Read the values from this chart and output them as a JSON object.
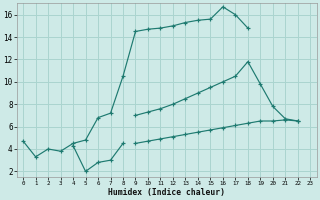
{
  "xlabel": "Humidex (Indice chaleur)",
  "background_color": "#ceeae7",
  "grid_color": "#aad4cf",
  "line_color": "#1e7a70",
  "xlim": [
    -0.5,
    23.5
  ],
  "ylim": [
    1.5,
    17.0
  ],
  "xticks": [
    0,
    1,
    2,
    3,
    4,
    5,
    6,
    7,
    8,
    9,
    10,
    11,
    12,
    13,
    14,
    15,
    16,
    17,
    18,
    19,
    20,
    21,
    22,
    23
  ],
  "yticks": [
    2,
    4,
    6,
    8,
    10,
    12,
    14,
    16
  ],
  "series": [
    {
      "x": [
        0,
        1,
        2,
        3,
        4,
        5,
        6,
        7,
        8,
        9,
        10,
        11,
        12,
        13,
        14,
        15,
        16,
        17,
        18
      ],
      "y": [
        4.7,
        3.3,
        4.0,
        3.8,
        4.5,
        4.8,
        6.8,
        7.2,
        10.5,
        14.5,
        14.7,
        14.8,
        15.0,
        15.3,
        15.5,
        15.6,
        16.7,
        16.0,
        14.8
      ]
    },
    {
      "x": [
        4,
        5,
        6,
        7,
        8
      ],
      "y": [
        4.3,
        2.0,
        2.8,
        3.0,
        4.5
      ]
    },
    {
      "x": [
        9,
        10,
        11,
        12,
        13,
        14,
        15,
        16,
        17,
        18,
        19,
        20,
        21,
        22
      ],
      "y": [
        7.0,
        7.3,
        7.6,
        8.0,
        8.5,
        9.0,
        9.5,
        10.0,
        10.5,
        11.8,
        9.8,
        7.8,
        6.7,
        6.5
      ]
    },
    {
      "x": [
        9,
        10,
        11,
        12,
        13,
        14,
        15,
        16,
        17,
        18,
        19,
        20,
        21,
        22
      ],
      "y": [
        4.5,
        4.7,
        4.9,
        5.1,
        5.3,
        5.5,
        5.7,
        5.9,
        6.1,
        6.3,
        6.5,
        6.5,
        6.6,
        6.5
      ]
    }
  ]
}
